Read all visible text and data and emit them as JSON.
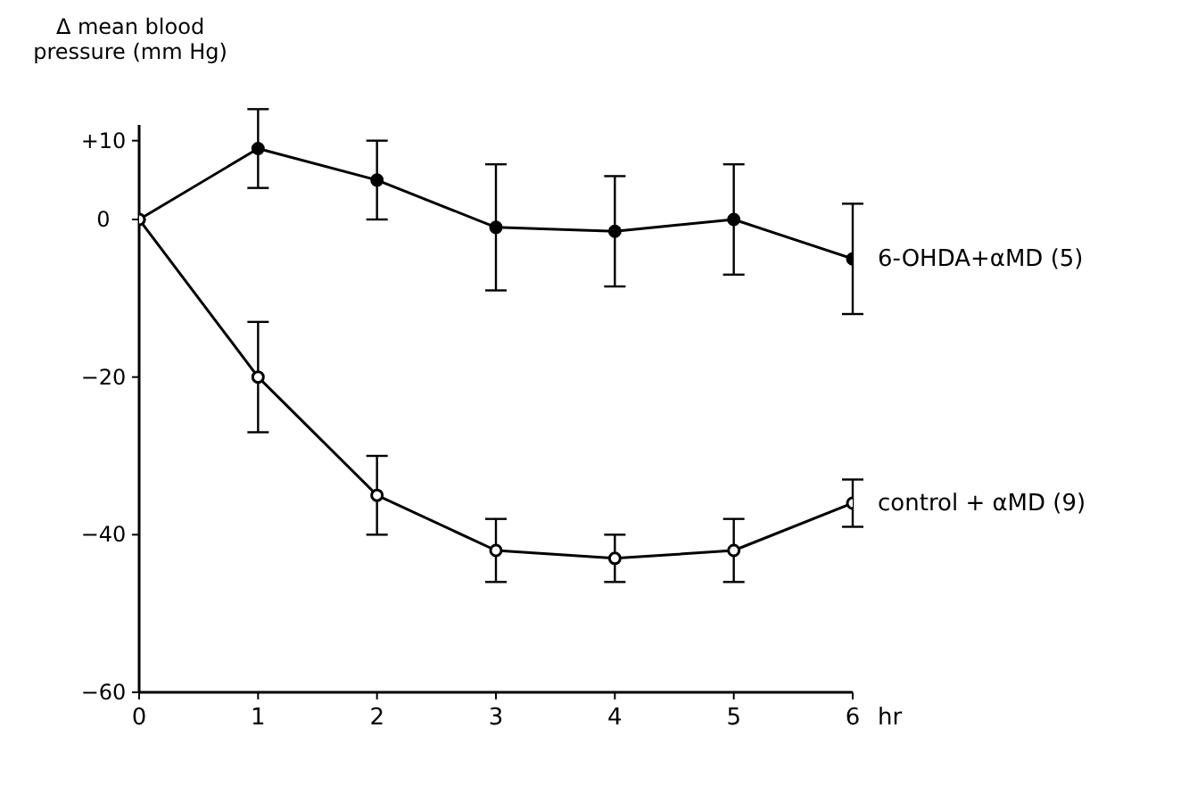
{
  "chart_data": {
    "type": "line",
    "ylabel": "Δ mean blood pressure (mm Hg)",
    "xlabel": "hr",
    "x": [
      0,
      1,
      2,
      3,
      4,
      5,
      6
    ],
    "series": [
      {
        "name": "6-OHDA+αMD (5)",
        "color": "#000000",
        "values": [
          0,
          9,
          5,
          -1,
          -1.5,
          0,
          -5
        ],
        "errors": [
          null,
          5,
          5,
          8,
          7,
          7,
          7
        ]
      },
      {
        "name": "control + αMD (9)",
        "color": "#000000",
        "values": [
          0,
          -20,
          -35,
          -42,
          -43,
          -42,
          -36
        ],
        "errors": [
          null,
          7,
          5,
          4,
          3,
          4,
          3
        ]
      }
    ],
    "xlim": [
      0,
      6
    ],
    "xticks": [
      0,
      1,
      2,
      3,
      4,
      5,
      6
    ],
    "ylim": [
      -60,
      12
    ],
    "yticks": [
      {
        "value": -60,
        "label": "−60"
      },
      {
        "value": -40,
        "label": "−40"
      },
      {
        "value": -20,
        "label": "−20"
      },
      0,
      {
        "value": 10,
        "label": "+10"
      }
    ],
    "marker": "circle",
    "line_style": "solid",
    "grid": false,
    "legend": false
  }
}
